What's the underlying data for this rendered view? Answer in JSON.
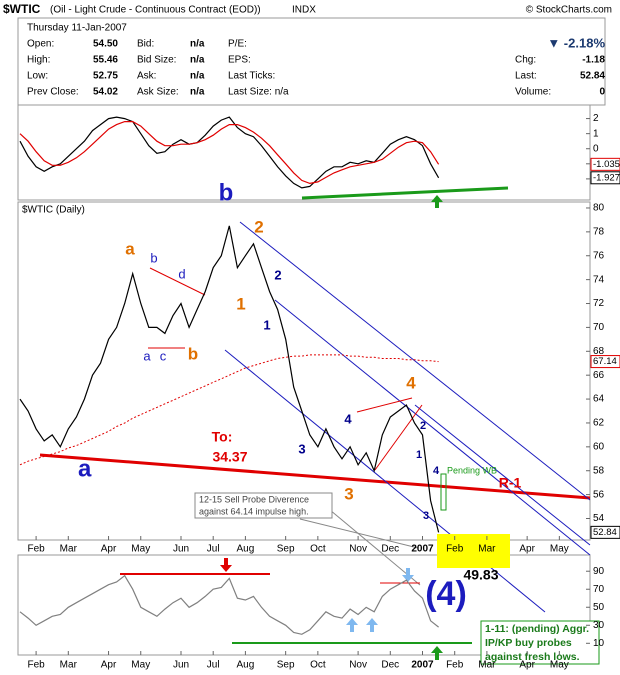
{
  "header": {
    "symbol": "$WTIC",
    "title": "(Oil - Light Crude - Continuous Contract (EOD))",
    "exchange": "INDX",
    "copyright": "© StockCharts.com",
    "date": "Thursday  11-Jan-2007",
    "col1": [
      [
        "Open:",
        "54.50"
      ],
      [
        "High:",
        "55.46"
      ],
      [
        "Low:",
        "52.75"
      ],
      [
        "Prev Close:",
        "54.02"
      ]
    ],
    "col2": [
      [
        "Bid:",
        "n/a"
      ],
      [
        "Bid Size:",
        "n/a"
      ],
      [
        "Ask:",
        "n/a"
      ],
      [
        "Ask Size:",
        "n/a"
      ]
    ],
    "col3": [
      "P/E:",
      "EPS:",
      "Last Ticks:",
      "Last Size:  n/a"
    ],
    "change_pct": "▼ -2.18%",
    "stats": [
      [
        "Chg:",
        "-1.18"
      ],
      [
        "Last:",
        "52.84"
      ],
      [
        "Volume:",
        "0"
      ]
    ]
  },
  "annotations": [
    "a",
    "b",
    "a",
    "b",
    "d",
    "a",
    "c",
    "b",
    "2",
    "1",
    "2",
    "1",
    "3",
    "4",
    "3",
    "4",
    "2",
    "1",
    "4",
    "3",
    "To:",
    "34.37",
    "R-1",
    "Pending WB",
    "49.83",
    "(4)",
    "12-15  Sell Probe Diverence",
    "against 64.14 impulse high.",
    "1-11:  (pending) Aggr.",
    "IP/KP buy probes",
    "against fresh  lows."
  ],
  "chart_data": [
    {
      "type": "line",
      "ylim": [
        -3.4,
        2.9
      ],
      "yticks": [
        -2,
        -1,
        0,
        1,
        2
      ],
      "series": [
        {
          "color": "#000000",
          "label_last": true,
          "values": [
            0.5,
            -0.5,
            -1.2,
            -1.5,
            -1.2,
            -1.0,
            -0.5,
            0,
            0.5,
            1.2,
            1.6,
            2.0,
            2.1,
            2.0,
            1.8,
            1.0,
            0.2,
            -0.3,
            -0.2,
            0.3,
            0.6,
            0.3,
            0.4,
            0.9,
            1.5,
            1.9,
            2.1,
            1.4,
            1.0,
            0.8,
            0.2,
            -0.5,
            -1.2,
            -1.8,
            -2.3,
            -2.6,
            -2.5,
            -2.0,
            -1.5,
            -1.2,
            -1.2,
            -0.9,
            -1.0,
            -0.8,
            -0.9,
            -0.3,
            0.3,
            0.6,
            0.8,
            0.6,
            0.2,
            -1.0,
            -1.927,
            null,
            null,
            null,
            null,
            null,
            null,
            null,
            null,
            null,
            null,
            null,
            null,
            null,
            null,
            null,
            null,
            null,
            null,
            null
          ]
        },
        {
          "color": "#e00000",
          "label_last": true,
          "values": [
            1.0,
            0.5,
            -0.2,
            -0.8,
            -1.1,
            -1.1,
            -0.9,
            -0.6,
            -0.2,
            0.3,
            0.8,
            1.3,
            1.6,
            1.8,
            1.8,
            1.5,
            1.0,
            0.5,
            0.2,
            0.2,
            0.3,
            0.3,
            0.4,
            0.6,
            0.9,
            1.3,
            1.6,
            1.6,
            1.4,
            1.1,
            0.7,
            0.2,
            -0.4,
            -1.0,
            -1.6,
            -2.1,
            -2.3,
            -2.2,
            -1.9,
            -1.6,
            -1.4,
            -1.2,
            -1.1,
            -1.0,
            -0.9,
            -0.7,
            -0.3,
            0.1,
            0.4,
            0.5,
            0.4,
            -0.2,
            -1.035,
            null,
            null,
            null,
            null,
            null,
            null,
            null,
            null,
            null,
            null,
            null,
            null,
            null,
            null,
            null,
            null,
            null,
            null,
            null
          ]
        }
      ]
    },
    {
      "type": "line",
      "label": "$WTIC (Daily)",
      "ylim": [
        52.2,
        80.5
      ],
      "yticks": [
        54,
        56,
        58,
        60,
        62,
        64,
        66,
        68,
        70,
        72,
        74,
        76,
        78,
        80
      ],
      "categories": [
        null,
        null,
        "Feb",
        null,
        null,
        null,
        "Mar",
        null,
        null,
        null,
        null,
        "Apr",
        null,
        null,
        null,
        "May",
        null,
        null,
        null,
        null,
        "Jun",
        null,
        null,
        null,
        "Jul",
        null,
        null,
        null,
        "Aug",
        null,
        null,
        null,
        null,
        "Sep",
        null,
        null,
        null,
        "Oct",
        null,
        null,
        null,
        null,
        "Nov",
        null,
        null,
        null,
        "Dec",
        null,
        null,
        null,
        "2007",
        null,
        null,
        null,
        "Feb",
        null,
        null,
        null,
        "Mar",
        null,
        null,
        null,
        null,
        "Apr",
        null,
        null,
        null,
        "May",
        null,
        null,
        null,
        null
      ],
      "series": [
        {
          "color": "#000000",
          "label_last": true,
          "values": [
            64,
            63,
            61.5,
            60.5,
            61,
            60,
            61.5,
            62.5,
            64,
            66,
            67,
            69,
            70,
            72,
            74.5,
            72,
            70,
            70,
            69.5,
            71,
            72,
            70,
            71.5,
            73,
            75,
            76,
            78.5,
            75,
            76,
            77,
            75,
            73,
            71.5,
            69,
            65,
            63,
            61,
            60,
            61.5,
            60,
            59,
            60,
            58.5,
            59.5,
            58,
            61,
            62.5,
            63,
            63.5,
            62,
            61,
            55.5,
            52.84,
            null,
            null,
            null,
            null,
            null,
            null,
            null,
            null,
            null,
            null,
            null,
            null,
            null,
            null,
            null,
            null,
            null,
            null,
            null
          ]
        },
        {
          "color": "#e00000",
          "dash": true,
          "label_last": true,
          "values": [
            58.5,
            58.8,
            59.0,
            59.2,
            59.4,
            59.6,
            59.9,
            60.1,
            60.4,
            60.7,
            61.0,
            61.3,
            61.7,
            62.0,
            62.4,
            62.7,
            63.0,
            63.3,
            63.6,
            63.9,
            64.2,
            64.5,
            64.8,
            65.1,
            65.4,
            65.7,
            66.0,
            66.3,
            66.6,
            66.8,
            67.0,
            67.2,
            67.4,
            67.5,
            67.6,
            67.6,
            67.7,
            67.7,
            67.7,
            67.7,
            67.7,
            67.6,
            67.6,
            67.5,
            67.5,
            67.4,
            67.4,
            67.4,
            67.3,
            67.3,
            67.2,
            67.2,
            67.14,
            null,
            null,
            null,
            null,
            null,
            null,
            null,
            null,
            null,
            null,
            null,
            null,
            null,
            null,
            null,
            null,
            null,
            null,
            null
          ]
        }
      ]
    },
    {
      "type": "line",
      "ylim": [
        -3,
        108
      ],
      "yticks": [
        10,
        30,
        50,
        70,
        90
      ],
      "categories": [
        null,
        null,
        "Feb",
        null,
        null,
        null,
        "Mar",
        null,
        null,
        null,
        null,
        "Apr",
        null,
        null,
        null,
        "May",
        null,
        null,
        null,
        null,
        "Jun",
        null,
        null,
        null,
        "Jul",
        null,
        null,
        null,
        "Aug",
        null,
        null,
        null,
        null,
        "Sep",
        null,
        null,
        null,
        "Oct",
        null,
        null,
        null,
        null,
        "Nov",
        null,
        null,
        null,
        "Dec",
        null,
        null,
        null,
        "2007",
        null,
        null,
        null,
        "Feb",
        null,
        null,
        null,
        "Mar",
        null,
        null,
        null,
        null,
        "Apr",
        null,
        null,
        null,
        "May",
        null,
        null,
        null,
        null
      ],
      "series": [
        {
          "color": "#808080",
          "values": [
            45,
            38,
            30,
            35,
            40,
            42,
            50,
            55,
            60,
            65,
            70,
            75,
            78,
            85,
            70,
            50,
            45,
            40,
            48,
            55,
            60,
            50,
            55,
            62,
            70,
            72,
            82,
            60,
            58,
            62,
            50,
            40,
            35,
            30,
            22,
            20,
            25,
            35,
            45,
            40,
            38,
            48,
            42,
            50,
            45,
            62,
            70,
            75,
            80,
            68,
            60,
            35,
            28,
            null,
            null,
            null,
            null,
            null,
            null,
            null,
            null,
            null,
            null,
            null,
            null,
            null,
            null,
            null,
            null,
            null,
            null,
            null
          ]
        }
      ]
    }
  ]
}
